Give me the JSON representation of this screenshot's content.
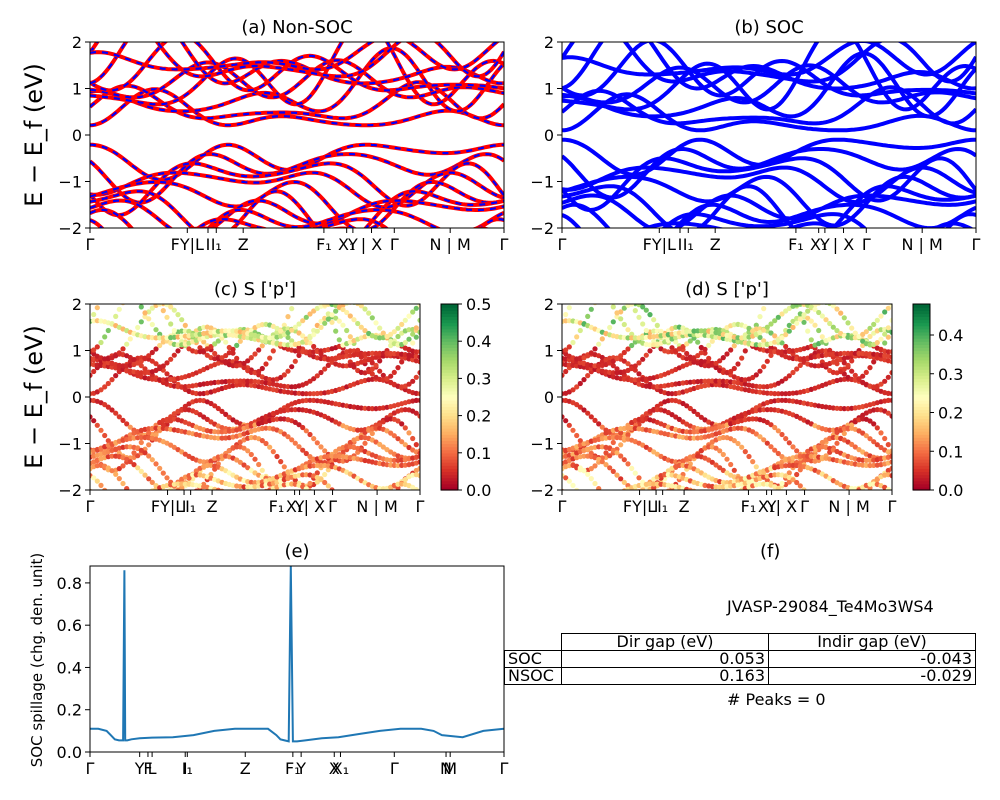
{
  "ylabel_main": "E − E_f (eV)",
  "chart_data": [
    {
      "id": "a",
      "type": "line",
      "title": "(a) Non-SOC",
      "ylim": [
        -2,
        2
      ],
      "yticks": [
        "2",
        "1",
        "0",
        "−1",
        "−2"
      ],
      "xticks": [
        "Γ",
        "FY|L",
        "I",
        "I₁",
        "Z",
        "F₁",
        "X₁",
        "Y",
        "| X",
        "Γ",
        "N | M",
        "Γ"
      ],
      "series": [
        {
          "color": "#ff0000"
        },
        {
          "color": "#0000ff"
        }
      ],
      "conduction_min": 0.16,
      "valence_max": -0.02
    },
    {
      "id": "b",
      "type": "line",
      "title": "(b) SOC",
      "ylim": [
        -2,
        2
      ],
      "yticks": [
        "2",
        "1",
        "0",
        "−1",
        "−2"
      ],
      "xticks": [
        "Γ",
        "FY|L",
        "I",
        "I₁",
        "Z",
        "F₁",
        "X₁",
        "Y",
        "| X",
        "Γ",
        "N | M",
        "Γ"
      ],
      "series": [
        {
          "color": "#0000ff"
        }
      ],
      "conduction_min": 0.05,
      "valence_max": 0.0
    },
    {
      "id": "c",
      "type": "scatter",
      "title": "(c)  S ['p']",
      "ylim": [
        -2,
        2
      ],
      "yticks": [
        "2",
        "1",
        "0",
        "−1",
        "−2"
      ],
      "xticks": [
        "Γ",
        "FY|L",
        "I",
        "I₁",
        "Z",
        "F₁",
        "X₁",
        "Y",
        "| X",
        "Γ",
        "N | M",
        "Γ"
      ],
      "colorbar": {
        "min": 0.0,
        "max": 0.5,
        "ticks": [
          "0.5",
          "0.4",
          "0.3",
          "0.2",
          "0.1",
          "0.0"
        ],
        "colormap": "RdYlGn"
      }
    },
    {
      "id": "d",
      "type": "scatter",
      "title": "(d) S ['p']",
      "ylim": [
        -2,
        2
      ],
      "yticks": [
        "2",
        "1",
        "0",
        "−1",
        "−2"
      ],
      "xticks": [
        "Γ",
        "FY|L",
        "I",
        "I₁",
        "Z",
        "F₁",
        "X₁",
        "Y",
        "| X",
        "Γ",
        "N | M",
        "Γ"
      ],
      "colorbar": {
        "min": 0.0,
        "max": 0.48,
        "ticks": [
          "0.4",
          "0.3",
          "0.2",
          "0.1",
          "0.0"
        ],
        "colormap": "RdYlGn"
      }
    },
    {
      "id": "e",
      "type": "line",
      "title": "(e)",
      "ylabel": "SOC spillage (chg. den. unit)",
      "ylim": [
        0,
        0.88
      ],
      "yticks": [
        "0.8",
        "0.6",
        "0.4",
        "0.2",
        "0.0"
      ],
      "xticks": [
        "Γ",
        "Y",
        "F",
        "L",
        "I",
        "I₁",
        "Z",
        "F₁",
        "Y",
        "X",
        "X₁",
        "Γ",
        "N",
        "M",
        "Γ"
      ],
      "series": [
        {
          "color": "#1f77b4",
          "x": [
            0,
            0.02,
            0.04,
            0.05,
            0.06,
            0.07,
            0.08,
            0.083,
            0.085,
            0.09,
            0.1,
            0.12,
            0.15,
            0.2,
            0.25,
            0.3,
            0.35,
            0.4,
            0.43,
            0.45,
            0.46,
            0.47,
            0.48,
            0.485,
            0.49,
            0.5,
            0.52,
            0.56,
            0.6,
            0.65,
            0.7,
            0.75,
            0.8,
            0.83,
            0.85,
            0.9,
            0.95,
            1.0
          ],
          "y": [
            0.11,
            0.11,
            0.1,
            0.08,
            0.06,
            0.055,
            0.055,
            0.86,
            0.055,
            0.055,
            0.06,
            0.065,
            0.068,
            0.07,
            0.08,
            0.1,
            0.11,
            0.11,
            0.11,
            0.08,
            0.06,
            0.055,
            0.05,
            0.88,
            0.05,
            0.05,
            0.055,
            0.065,
            0.07,
            0.085,
            0.1,
            0.11,
            0.11,
            0.1,
            0.08,
            0.07,
            0.1,
            0.11
          ]
        }
      ]
    }
  ],
  "panel_f": {
    "title": "(f)",
    "material": "JVASP-29084_Te4Mo3WS4",
    "table": {
      "headers": [
        "Dir gap (eV)",
        "Indir gap (eV)"
      ],
      "rows": [
        {
          "label": "SOC",
          "dir": "0.053",
          "indir": "-0.043"
        },
        {
          "label": "NSOC",
          "dir": "0.163",
          "indir": "-0.029"
        }
      ]
    },
    "peaks": "# Peaks = 0"
  }
}
